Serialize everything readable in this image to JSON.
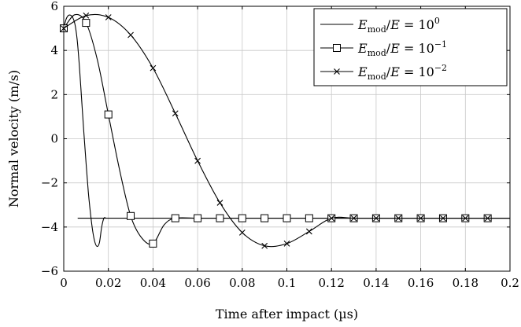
{
  "chart_data": {
    "type": "line",
    "title": "",
    "xlabel": "Time after impact (µs)",
    "ylabel": "Normal velocity (m/s)",
    "xlim": [
      0,
      0.2
    ],
    "ylim": [
      -6,
      6
    ],
    "xticks": [
      0,
      0.02,
      0.04,
      0.06,
      0.08,
      0.1,
      0.12,
      0.14,
      0.16,
      0.18,
      0.2
    ],
    "yticks": [
      -6,
      -4,
      -2,
      0,
      2,
      4,
      6
    ],
    "xtick_labels": [
      "0",
      "0.02",
      "0.04",
      "0.06",
      "0.08",
      "0.1",
      "0.12",
      "0.14",
      "0.16",
      "0.18",
      "0.2"
    ],
    "ytick_labels": [
      "−6",
      "−4",
      "−2",
      "0",
      "2",
      "4",
      "6"
    ],
    "grid": true,
    "legend_position": "top-right",
    "series": [
      {
        "name": "E_mod/E = 10^0",
        "legend": {
          "base": "E",
          "sub": "mod",
          "rest": "/",
          "base2": "E",
          "eq": " = 10",
          "exp": "0"
        },
        "marker": "none",
        "x": [
          0,
          0.001,
          0.002,
          0.003,
          0.004,
          0.005,
          0.006,
          0.007,
          0.008,
          0.009,
          0.01,
          0.011,
          0.012,
          0.013,
          0.014,
          0.015,
          0.016,
          0.017,
          0.018,
          0.019,
          0.02,
          0.2
        ],
        "y": [
          5.0,
          5.4,
          5.58,
          5.6,
          5.5,
          5.2,
          4.5,
          3.3,
          1.8,
          0.3,
          -1.1,
          -2.4,
          -3.4,
          -4.2,
          -4.7,
          -4.88,
          -4.7,
          -4.0,
          -3.6,
          -3.6,
          -3.6,
          -3.6
        ]
      },
      {
        "name": "E_mod/E = 10^-1",
        "legend": {
          "base": "E",
          "sub": "mod",
          "rest": "/",
          "base2": "E",
          "eq": " = 10",
          "exp": "−1"
        },
        "marker": "square",
        "x": [
          0,
          0.005,
          0.01,
          0.015,
          0.02,
          0.025,
          0.03,
          0.035,
          0.04,
          0.045,
          0.05,
          0.06,
          0.07,
          0.08,
          0.09,
          0.1,
          0.11,
          0.12,
          0.13,
          0.14,
          0.15,
          0.16,
          0.17,
          0.18,
          0.19,
          0.2
        ],
        "y": [
          5.0,
          5.62,
          5.25,
          3.6,
          1.1,
          -1.4,
          -3.5,
          -4.5,
          -4.75,
          -3.9,
          -3.6,
          -3.6,
          -3.6,
          -3.6,
          -3.6,
          -3.6,
          -3.6,
          -3.6,
          -3.6,
          -3.6,
          -3.6,
          -3.6,
          -3.6,
          -3.6,
          -3.6,
          -3.6
        ],
        "markers_x": [
          0,
          0.01,
          0.02,
          0.03,
          0.04,
          0.05,
          0.06,
          0.07,
          0.08,
          0.09,
          0.1,
          0.11,
          0.12,
          0.13,
          0.14,
          0.15,
          0.16,
          0.17,
          0.18,
          0.19
        ]
      },
      {
        "name": "E_mod/E = 10^-2",
        "legend": {
          "base": "E",
          "sub": "mod",
          "rest": "/",
          "base2": "E",
          "eq": " = 10",
          "exp": "−2"
        },
        "marker": "cross",
        "x": [
          0,
          0.01,
          0.02,
          0.03,
          0.04,
          0.05,
          0.06,
          0.07,
          0.08,
          0.09,
          0.1,
          0.11,
          0.12,
          0.13,
          0.14,
          0.15,
          0.16,
          0.17,
          0.18,
          0.19,
          0.2
        ],
        "y": [
          5.0,
          5.58,
          5.5,
          4.7,
          3.2,
          1.15,
          -1.0,
          -2.9,
          -4.25,
          -4.85,
          -4.75,
          -4.2,
          -3.6,
          -3.6,
          -3.6,
          -3.6,
          -3.6,
          -3.6,
          -3.6,
          -3.6,
          -3.6
        ],
        "markers_x": [
          0,
          0.01,
          0.02,
          0.03,
          0.04,
          0.05,
          0.06,
          0.07,
          0.08,
          0.09,
          0.1,
          0.11,
          0.12,
          0.13,
          0.14,
          0.15,
          0.16,
          0.17,
          0.18,
          0.19
        ]
      }
    ]
  }
}
